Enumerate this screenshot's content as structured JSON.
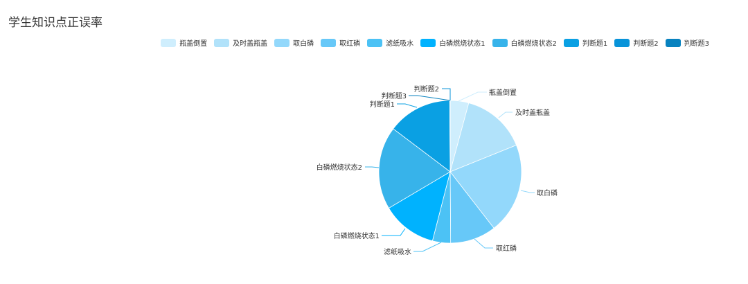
{
  "chart_data": {
    "type": "pie",
    "title": "学生知识点正误率",
    "legend_position": "top-right",
    "categories": [
      "瓶盖倒置",
      "及时盖瓶盖",
      "取白磷",
      "取红磷",
      "滤纸吸水",
      "白磷燃烧状态1",
      "白磷燃烧状态2",
      "判断题1",
      "判断题2",
      "判断题3"
    ],
    "values": [
      4.2,
      14.7,
      20.6,
      10.4,
      4.1,
      12.5,
      18.8,
      14.6,
      0.05,
      0.05
    ],
    "colors": [
      "#cfeefd",
      "#b1e2fa",
      "#93d8fb",
      "#67c8f8",
      "#4cc2f5",
      "#00b2fe",
      "#37b3ea",
      "#0aa0e3",
      "#0893d9",
      "#0882bf"
    ]
  }
}
